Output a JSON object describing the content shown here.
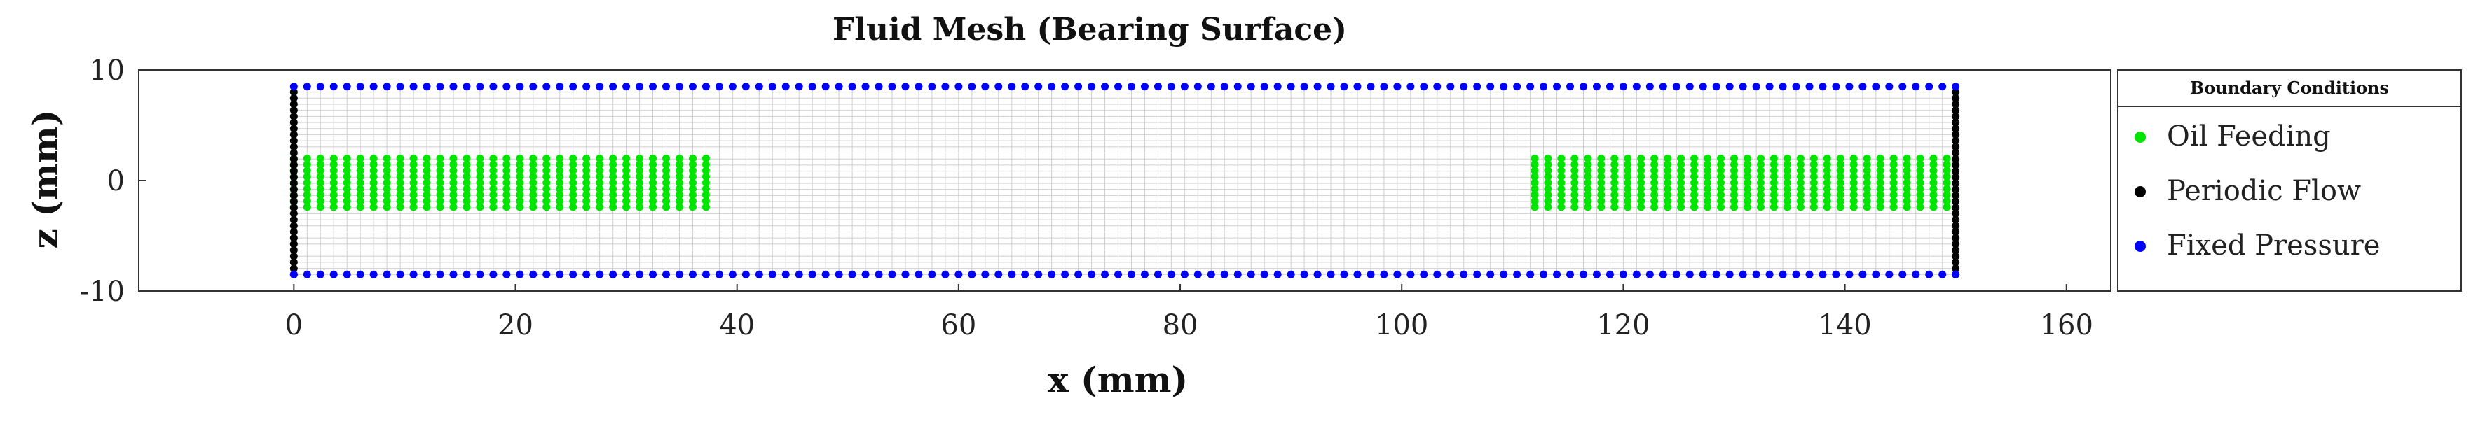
{
  "chart_data": {
    "type": "scatter",
    "title": "Fluid Mesh (Bearing Surface)",
    "xlabel": "x (mm)",
    "ylabel": "z (mm)",
    "xlim": [
      -14,
      164
    ],
    "ylim": [
      -10,
      10
    ],
    "xticks": [
      0,
      20,
      40,
      60,
      80,
      100,
      120,
      140,
      160
    ],
    "yticks": [
      -10,
      0,
      10
    ],
    "grid": true,
    "mesh": {
      "x_range": [
        0,
        150
      ],
      "z_range": [
        -8.5,
        8.5
      ],
      "x_spacing": 1.2,
      "z_spacing": 0.55
    },
    "legend": {
      "title": "Boundary Conditions",
      "position": "right"
    },
    "series": [
      {
        "name": "Oil Feeding",
        "color": "#00e600",
        "regions": [
          {
            "x": [
              0,
              38
            ],
            "z": [
              -2.4,
              2.4
            ]
          },
          {
            "x": [
              112,
              150
            ],
            "z": [
              -2.4,
              2.4
            ]
          }
        ]
      },
      {
        "name": "Periodic Flow",
        "color": "#000000",
        "lines": [
          {
            "x": 0,
            "z": [
              -8.5,
              8.5
            ]
          },
          {
            "x": 150,
            "z": [
              -8.5,
              8.5
            ]
          }
        ]
      },
      {
        "name": "Fixed Pressure",
        "color": "#0000ff",
        "lines": [
          {
            "z": 8.5,
            "x": [
              0,
              150
            ]
          },
          {
            "z": -8.5,
            "x": [
              0,
              150
            ]
          }
        ]
      }
    ]
  }
}
